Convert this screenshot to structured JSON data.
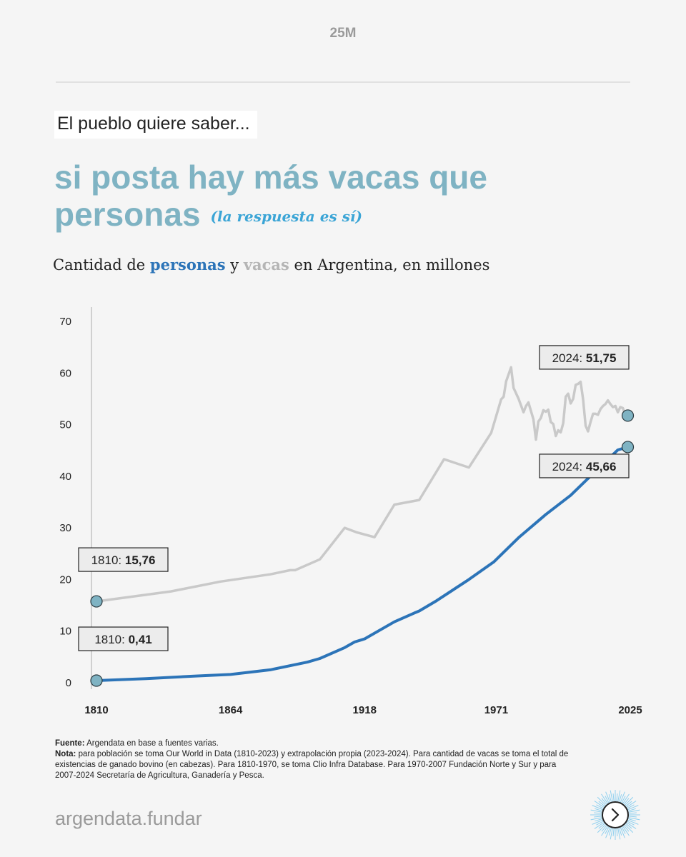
{
  "header": {
    "tag": "25M"
  },
  "kicker": "El pueblo quiere saber...",
  "headline": {
    "line1": "si posta hay más vacas que",
    "line2": "personas",
    "answer": "(la respuesta es sí)"
  },
  "subtitle": {
    "pre": "Cantidad de",
    "personas": "personas",
    "y": "y",
    "vacas": "vacas",
    "post": "en Argentina, en millones"
  },
  "colors": {
    "personas": "#2c74b8",
    "vacas": "#c9c9c9",
    "marker": "#7fb3c3",
    "accent": "#7fb3c3"
  },
  "chart_data": {
    "type": "line",
    "title": "Cantidad de personas y vacas en Argentina, en millones",
    "xlabel": "",
    "ylabel": "",
    "xlim": [
      1810,
      2025
    ],
    "ylim": [
      0,
      70
    ],
    "x_ticks": [
      1810,
      1864,
      1918,
      1971,
      2025
    ],
    "y_ticks": [
      0,
      10,
      20,
      30,
      40,
      50,
      60,
      70
    ],
    "series": [
      {
        "name": "vacas",
        "x": [
          1810,
          1840,
          1860,
          1880,
          1888,
          1890,
          1900,
          1910,
          1915,
          1922,
          1930,
          1940,
          1950,
          1960,
          1969,
          1973,
          1974,
          1975,
          1977,
          1978,
          1980,
          1982,
          1983,
          1984,
          1986,
          1987,
          1988,
          1989,
          1990,
          1991,
          1992,
          1993,
          1994,
          1995,
          1996,
          1997,
          1998,
          1999,
          2000,
          2001,
          2002,
          2003,
          2004,
          2005,
          2006,
          2007,
          2008,
          2009,
          2010,
          2011,
          2012,
          2013,
          2014,
          2015,
          2016,
          2017,
          2018,
          2019,
          2020,
          2021,
          2022,
          2023,
          2024
        ],
        "values": [
          15.76,
          17.7,
          19.6,
          21.0,
          21.8,
          21.8,
          23.9,
          30.0,
          29.1,
          28.2,
          34.5,
          35.4,
          43.3,
          41.7,
          48.4,
          54.9,
          55.4,
          58.4,
          61.1,
          57.1,
          55.0,
          52.4,
          53.6,
          54.3,
          51.0,
          47.1,
          50.6,
          51.3,
          52.8,
          52.5,
          52.9,
          50.5,
          50.1,
          47.8,
          48.9,
          48.5,
          50.3,
          55.4,
          56.0,
          54.1,
          55.0,
          57.7,
          57.9,
          58.3,
          54.9,
          49.8,
          48.7,
          50.5,
          52.1,
          52.1,
          51.9,
          53.0,
          53.6,
          54.0,
          54.7,
          54.0,
          53.4,
          53.6,
          52.4,
          53.4,
          53.2,
          51.9,
          51.75
        ]
      },
      {
        "name": "personas",
        "x": [
          1810,
          1830,
          1850,
          1864,
          1880,
          1895,
          1900,
          1910,
          1914,
          1918,
          1930,
          1938,
          1940,
          1947,
          1960,
          1970,
          1980,
          1991,
          2001,
          2010,
          2020,
          2024
        ],
        "values": [
          0.41,
          0.8,
          1.3,
          1.6,
          2.5,
          4.0,
          4.7,
          6.8,
          7.9,
          8.5,
          11.8,
          13.5,
          13.9,
          15.9,
          20.0,
          23.4,
          28.1,
          32.6,
          36.3,
          40.5,
          45.1,
          45.66
        ]
      }
    ],
    "annotations": [
      {
        "series": "vacas",
        "year": "1810",
        "value": "15,76",
        "sep": ": "
      },
      {
        "series": "personas",
        "year": "1810",
        "value": "0,41",
        "sep": ": "
      },
      {
        "series": "vacas",
        "year": "2024",
        "value": "51,75",
        "sep": ": "
      },
      {
        "series": "personas",
        "year": "2024",
        "value": "45,66",
        "sep": ": "
      }
    ],
    "grid": false,
    "legend": "none"
  },
  "notes": {
    "fuente_label": "Fuente:",
    "fuente_text": "Argendata en base a fuentes varias.",
    "nota_label": "Nota:",
    "nota_text": "para población se toma Our World in Data (1810-2023) y extrapolación propia (2023-2024). Para cantidad de vacas se toma el total de existencias de ganado bovino (en cabezas). Para 1810-1970, se toma Clio Infra Database. Para 1970-2007 Fundación Norte y Sur y para 2007-2024 Secretaría de Agricultura, Ganadería y Pesca."
  },
  "brand": "argendata.fundar",
  "next_icon": "chevron-right-icon"
}
